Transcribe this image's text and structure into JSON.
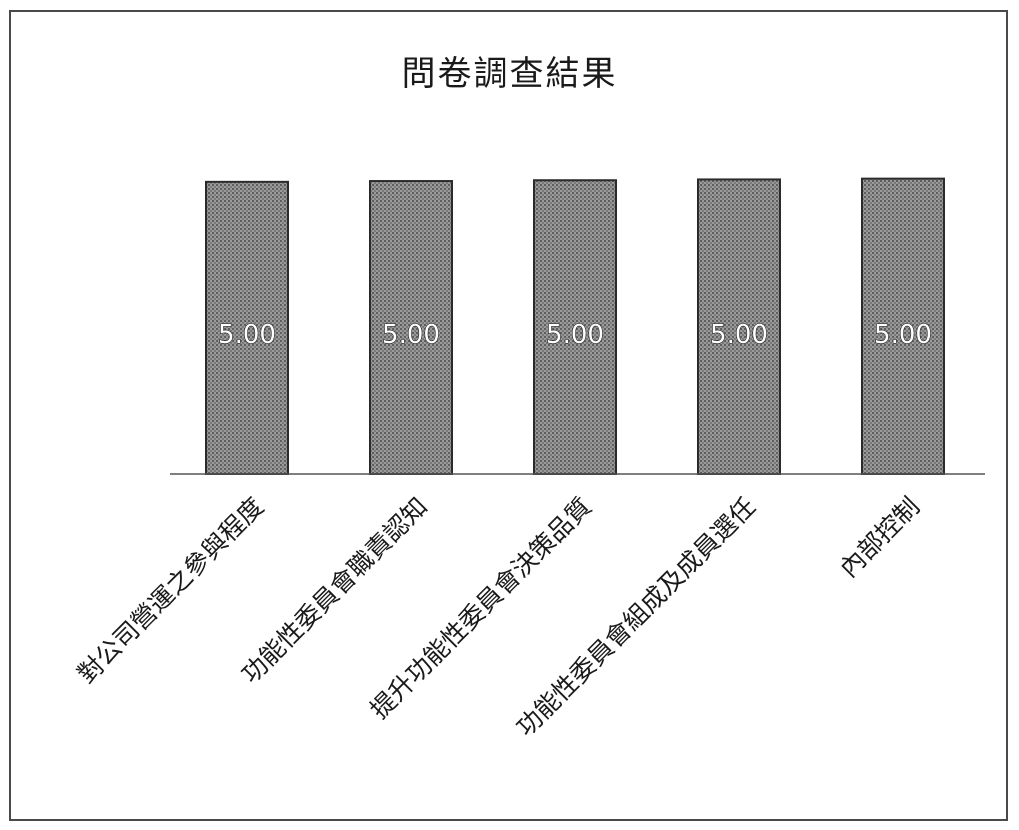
{
  "chart_data": {
    "type": "bar",
    "title": "問卷調查結果",
    "categories": [
      "對公司營運之參與程度",
      "功能性委員會職責認知",
      "提升功能性委員會決策品質",
      "功能性委員會組成及成員選任",
      "內部控制"
    ],
    "values": [
      5.0,
      5.0,
      5.0,
      5.0,
      5.0
    ],
    "data_labels": [
      "5.00",
      "5.00",
      "5.00",
      "5.00",
      "5.00"
    ],
    "ylim": [
      0,
      5.1
    ],
    "grid": false,
    "legend": "none",
    "bar_color": "#8a8a8a",
    "bar_border_color": "#2b2b2b"
  }
}
